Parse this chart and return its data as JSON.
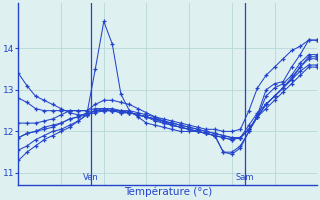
{
  "background_color": "#dff0f0",
  "grid_color": "#b8d8d8",
  "line_color": "#2244cc",
  "marker_color": "#2244cc",
  "xlabel": "Température (°c)",
  "ylim": [
    10.7,
    15.1
  ],
  "xlim": [
    0,
    35
  ],
  "yticks": [
    11,
    12,
    13,
    14
  ],
  "ven_x": 8.5,
  "sam_x": 26.5,
  "series": [
    [
      13.4,
      13.1,
      12.85,
      12.75,
      12.65,
      12.55,
      12.45,
      12.4,
      12.4,
      13.5,
      14.65,
      14.1,
      12.9,
      12.5,
      12.35,
      12.2,
      12.15,
      12.1,
      12.05,
      12.0,
      12.0,
      12.0,
      11.95,
      11.9,
      11.5,
      11.45,
      11.6,
      12.0,
      12.4,
      13.0,
      13.15,
      13.2,
      13.55,
      13.85,
      14.2,
      14.2
    ],
    [
      12.8,
      12.7,
      12.55,
      12.5,
      12.5,
      12.5,
      12.5,
      12.5,
      12.5,
      12.65,
      12.75,
      12.75,
      12.7,
      12.65,
      12.55,
      12.45,
      12.35,
      12.25,
      12.15,
      12.1,
      12.05,
      12.0,
      11.95,
      11.9,
      11.5,
      11.5,
      11.65,
      12.0,
      12.35,
      12.85,
      13.05,
      13.15,
      13.35,
      13.65,
      13.85,
      13.85
    ],
    [
      12.2,
      12.2,
      12.2,
      12.25,
      12.3,
      12.4,
      12.5,
      12.5,
      12.5,
      12.55,
      12.55,
      12.55,
      12.5,
      12.5,
      12.45,
      12.4,
      12.35,
      12.3,
      12.25,
      12.2,
      12.15,
      12.1,
      12.05,
      12.05,
      12.0,
      12.0,
      12.05,
      12.5,
      13.05,
      13.35,
      13.55,
      13.75,
      13.95,
      14.05,
      14.2,
      14.2
    ],
    [
      11.85,
      11.95,
      12.0,
      12.1,
      12.15,
      12.2,
      12.3,
      12.35,
      12.45,
      12.5,
      12.55,
      12.5,
      12.5,
      12.45,
      12.4,
      12.35,
      12.3,
      12.25,
      12.2,
      12.15,
      12.1,
      12.05,
      12.0,
      11.95,
      11.9,
      11.85,
      11.85,
      12.05,
      12.35,
      12.65,
      12.85,
      13.05,
      13.3,
      13.55,
      13.8,
      13.8
    ],
    [
      11.85,
      11.95,
      12.0,
      12.05,
      12.1,
      12.2,
      12.3,
      12.35,
      12.4,
      12.5,
      12.5,
      12.5,
      12.5,
      12.45,
      12.4,
      12.35,
      12.3,
      12.25,
      12.2,
      12.15,
      12.1,
      12.05,
      12.0,
      11.95,
      11.9,
      11.85,
      11.85,
      12.05,
      12.35,
      12.65,
      12.85,
      13.05,
      13.25,
      13.55,
      13.75,
      13.75
    ],
    [
      11.55,
      11.65,
      11.8,
      11.9,
      12.0,
      12.05,
      12.15,
      12.25,
      12.4,
      12.45,
      12.5,
      12.5,
      12.45,
      12.45,
      12.4,
      12.35,
      12.3,
      12.2,
      12.15,
      12.1,
      12.05,
      12.0,
      11.95,
      11.9,
      11.85,
      11.8,
      11.85,
      12.15,
      12.45,
      12.65,
      12.85,
      13.05,
      13.25,
      13.45,
      13.6,
      13.6
    ],
    [
      11.3,
      11.5,
      11.65,
      11.8,
      11.9,
      12.0,
      12.1,
      12.25,
      12.4,
      12.5,
      12.5,
      12.5,
      12.45,
      12.45,
      12.4,
      12.35,
      12.25,
      12.2,
      12.15,
      12.1,
      12.05,
      12.0,
      11.95,
      11.9,
      11.85,
      11.8,
      11.85,
      12.05,
      12.35,
      12.55,
      12.75,
      12.95,
      13.15,
      13.35,
      13.55,
      13.55
    ]
  ]
}
